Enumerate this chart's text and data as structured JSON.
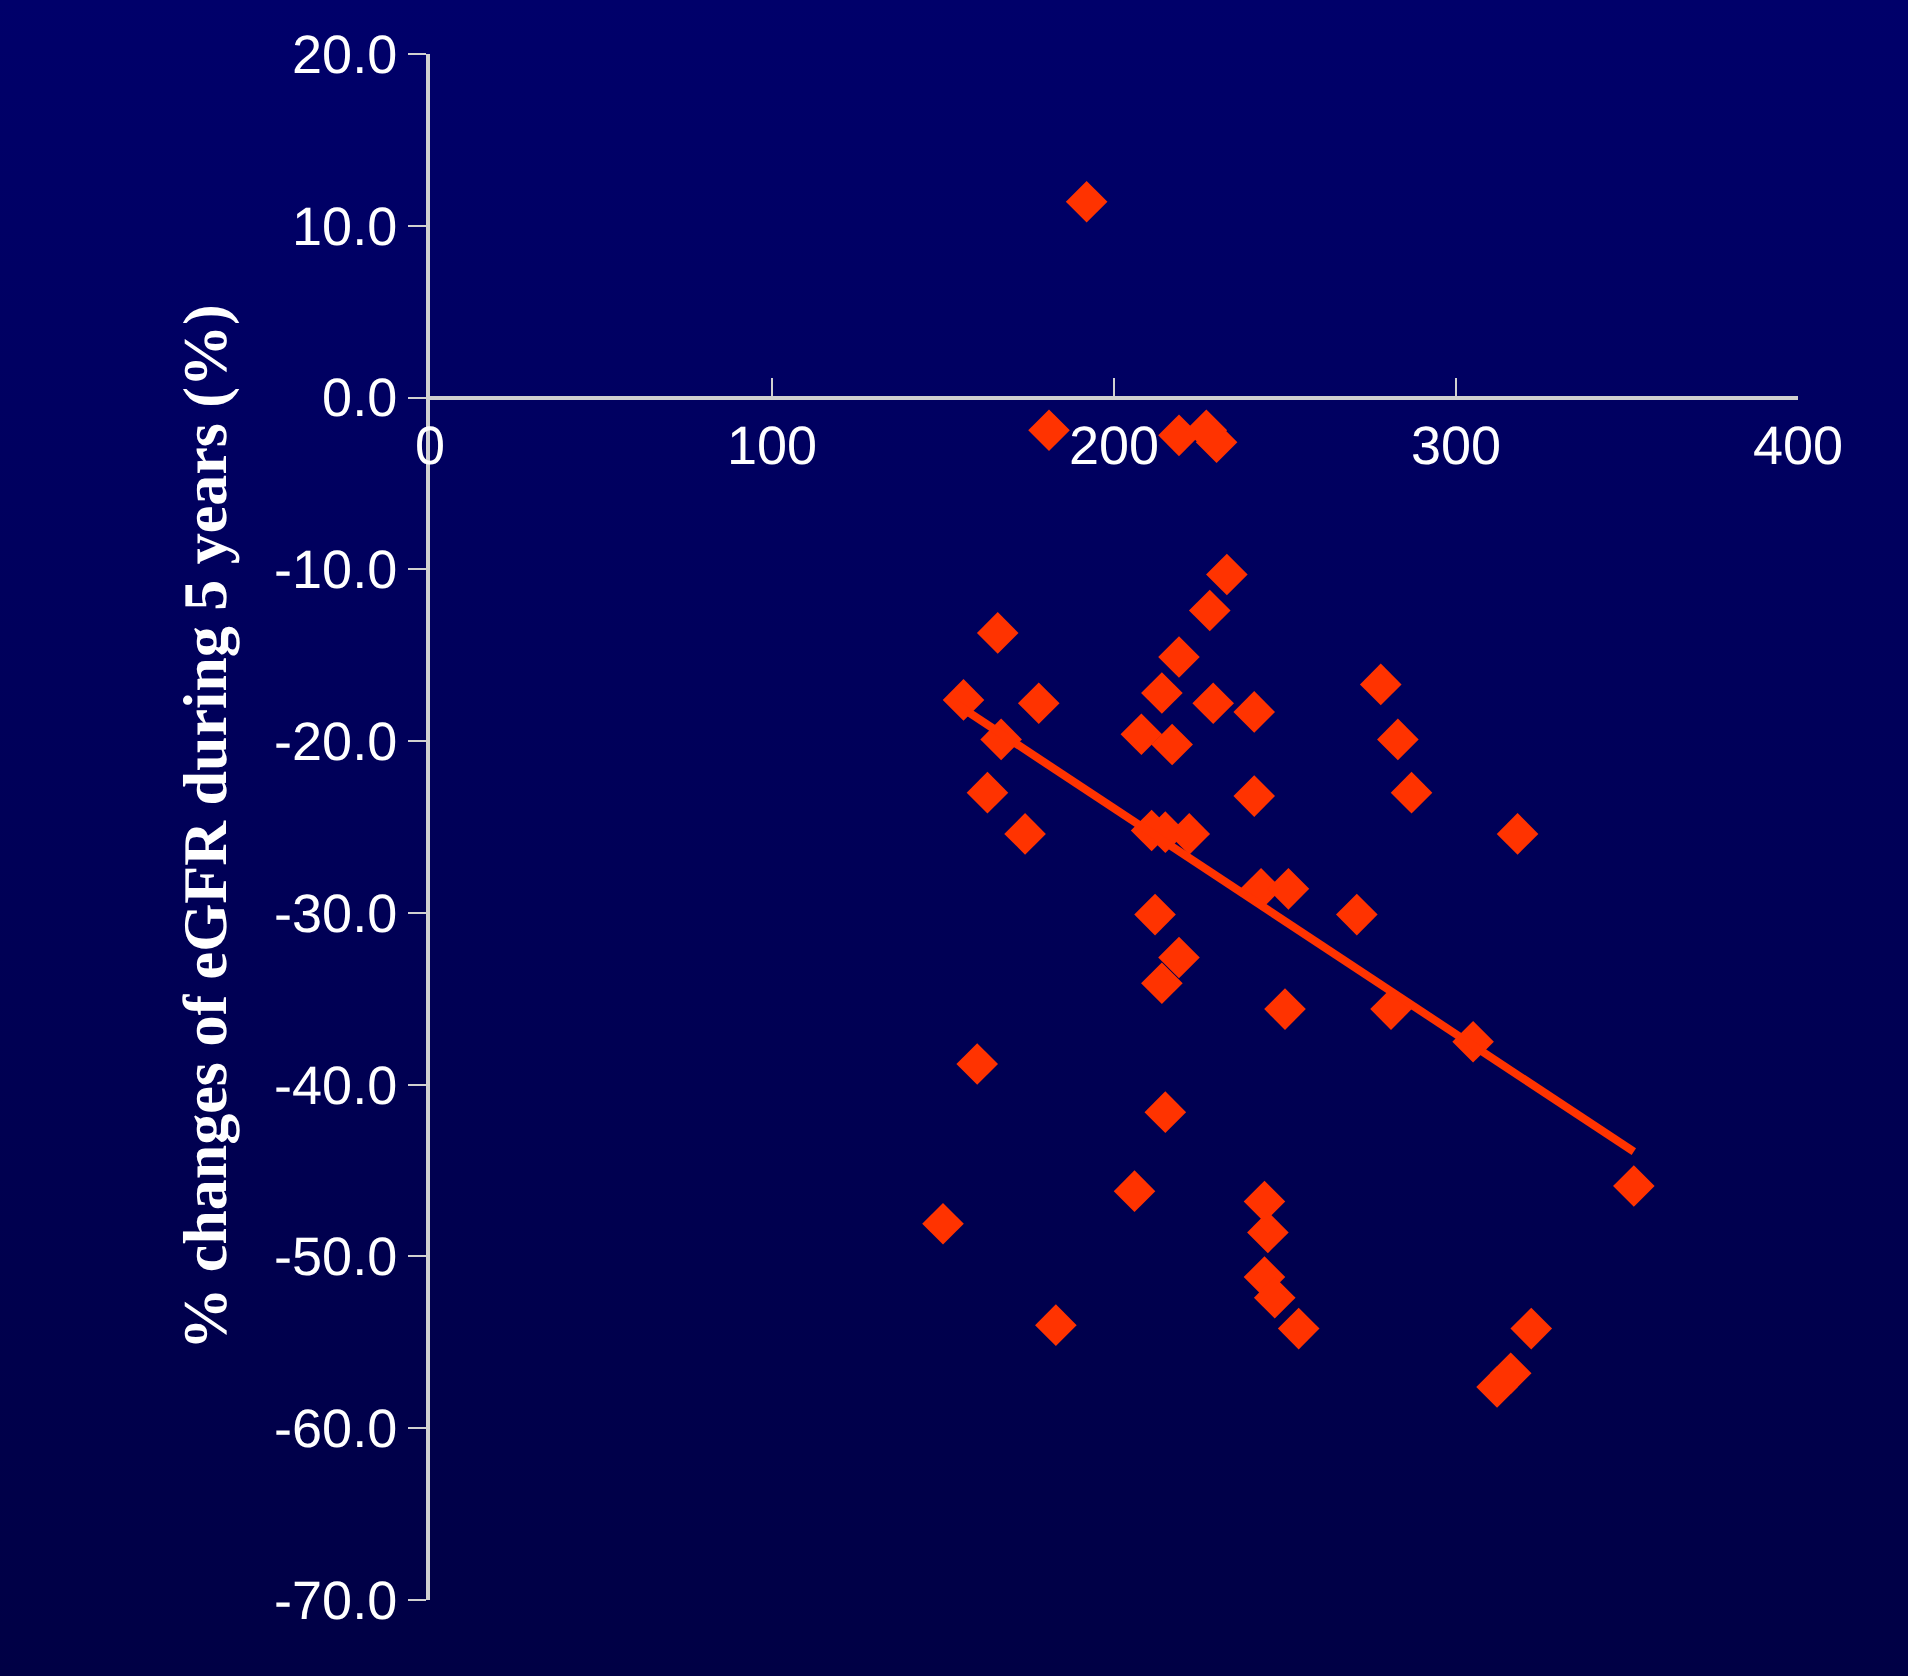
{
  "chart_data": {
    "type": "scatter",
    "ylabel": "% changes of eGFR during 5 years (%)",
    "marker": "diamond",
    "grid": false,
    "xlim": [
      0,
      400
    ],
    "xticks": [
      0,
      100,
      200,
      300,
      400
    ],
    "ylim": [
      -70,
      20
    ],
    "yticks": [
      {
        "value": 20,
        "label": "20.0"
      },
      {
        "value": 10,
        "label": "10.0"
      },
      {
        "value": 0,
        "label": "0.0"
      },
      {
        "value": -10,
        "label": "-10.0"
      },
      {
        "value": -20,
        "label": "-20.0"
      },
      {
        "value": -30,
        "label": "-30.0"
      },
      {
        "value": -40,
        "label": "-40.0"
      },
      {
        "value": -50,
        "label": "-50.0"
      },
      {
        "value": -60,
        "label": "-60.0"
      },
      {
        "value": -70,
        "label": "-70.0"
      }
    ],
    "series": [
      {
        "color": "#ff3300",
        "x": [
          192,
          181,
          219,
          227,
          230,
          233,
          166,
          228,
          219,
          214,
          229,
          156,
          178,
          241,
          278,
          283,
          167,
          208,
          217,
          163,
          241,
          287,
          174,
          211,
          215,
          222,
          318,
          243,
          251,
          212,
          271,
          219,
          214,
          250,
          281,
          305,
          160,
          215,
          206,
          244,
          245,
          352,
          150,
          244,
          247,
          183,
          254,
          322,
          316,
          312
        ],
        "values": [
          11.4,
          -1.9,
          -2.2,
          -1.9,
          -2.6,
          -10.3,
          -13.7,
          -12.4,
          -15.1,
          -17.2,
          -17.8,
          -17.6,
          -17.8,
          -18.3,
          -16.7,
          -19.9,
          -19.9,
          -19.6,
          -20.2,
          -23,
          -23.2,
          -23,
          -25.4,
          -25.2,
          -25.3,
          -25.4,
          -25.4,
          -28.6,
          -28.6,
          -30.1,
          -30.1,
          -32.6,
          -34.1,
          -35.6,
          -35.6,
          -37.5,
          -38.8,
          -41.6,
          -46.2,
          -46.8,
          -48.6,
          -45.9,
          -48.1,
          -51.2,
          -52.4,
          -54,
          -54.2,
          -54.2,
          -56.8,
          -57.6
        ]
      },
      {
        "type": "line",
        "color": "#ff3300",
        "marker": "none",
        "x": [
          152,
          352
        ],
        "values": [
          -17.6,
          -43.9
        ]
      }
    ]
  }
}
